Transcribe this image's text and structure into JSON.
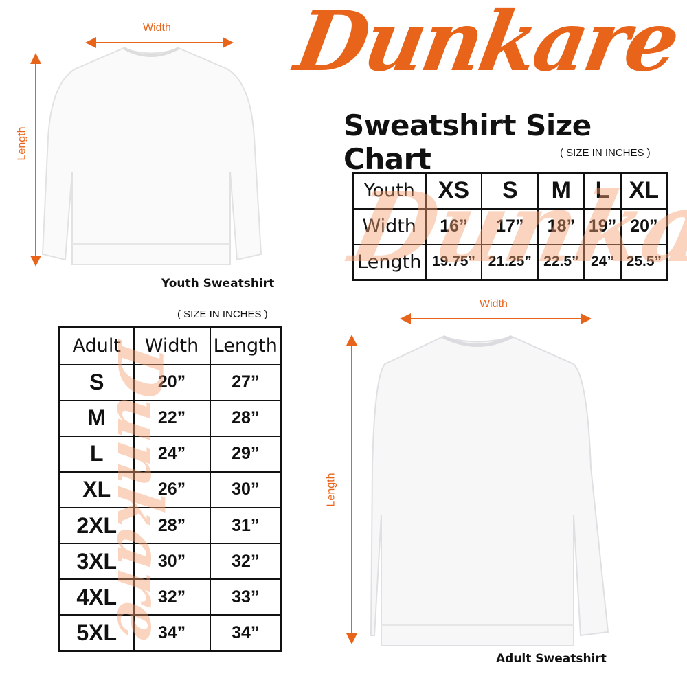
{
  "brand": {
    "logo_text": "Dunkare",
    "color": "#e8641a"
  },
  "title": "Sweatshirt Size Chart",
  "unit_note": "( SIZE IN INCHES )",
  "youth": {
    "caption": "Youth Sweatshirt",
    "width_label": "Width",
    "length_label": "Length",
    "header": [
      "Youth",
      "XS",
      "S",
      "M",
      "L",
      "XL"
    ],
    "rows": [
      [
        "Width",
        "16”",
        "17”",
        "18”",
        "19”",
        "20”"
      ],
      [
        "Length",
        "19.75”",
        "21.25”",
        "22.5”",
        "24”",
        "25.5”"
      ]
    ]
  },
  "adult": {
    "caption": "Adult Sweatshirt",
    "width_label": "Width",
    "length_label": "Length",
    "header": [
      "Adult",
      "Width",
      "Length"
    ],
    "rows": [
      [
        "S",
        "20”",
        "27”"
      ],
      [
        "M",
        "22”",
        "28”"
      ],
      [
        "L",
        "24”",
        "29”"
      ],
      [
        "XL",
        "26”",
        "30”"
      ],
      [
        "2XL",
        "28”",
        "31”"
      ],
      [
        "3XL",
        "30”",
        "32”"
      ],
      [
        "4XL",
        "32”",
        "33”"
      ],
      [
        "5XL",
        "34”",
        "34”"
      ]
    ]
  }
}
